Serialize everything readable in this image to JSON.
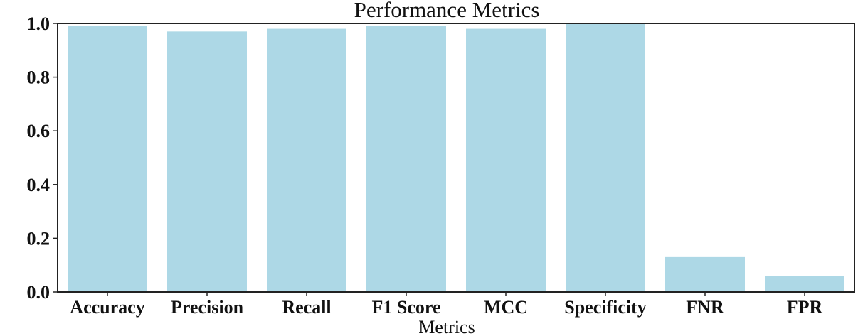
{
  "chart_data": {
    "type": "bar",
    "title": "Performance Metrics",
    "xlabel": "Metrics",
    "ylabel": "",
    "categories": [
      "Accuracy",
      "Precision",
      "Recall",
      "F1 Score",
      "MCC",
      "Specificity",
      "FNR",
      "FPR"
    ],
    "values": [
      0.99,
      0.97,
      0.98,
      0.99,
      0.98,
      1.0,
      0.13,
      0.06
    ],
    "ylim": [
      0.0,
      1.0
    ],
    "yticks": [
      "0.0",
      "0.2",
      "0.4",
      "0.6",
      "0.8",
      "1.0"
    ],
    "grid": false,
    "legend": "none",
    "bar_color": "#add8e6"
  }
}
